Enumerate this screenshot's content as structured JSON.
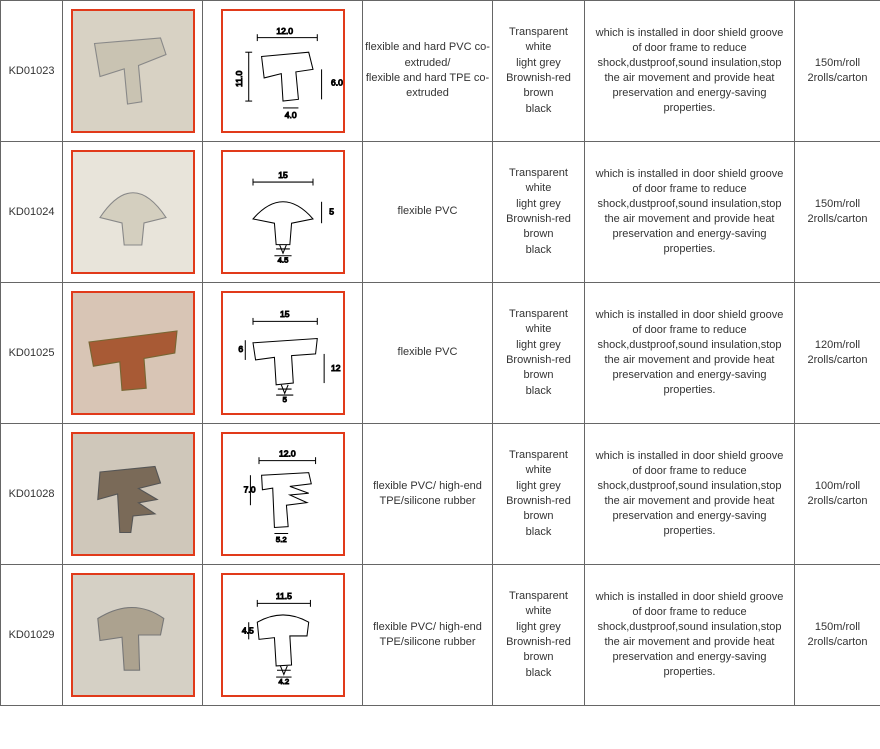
{
  "border_color": "#666666",
  "img_border_color": "#e13a1a",
  "rows": [
    {
      "code": "KD01023",
      "photo_bg": "#d8d2c4",
      "seal_color": "#c9c3b2",
      "drawing_dims": {
        "w": "12.0",
        "h1": "11.0",
        "h2": "6.0",
        "base": "4.0"
      },
      "material": "flexible and hard PVC co-extruded/\nflexible and hard TPE co-extruded",
      "colors": "Transparent\nwhite\nlight grey\nBrownish-red\nbrown\nblack",
      "desc": "which is installed in door shield groove of door frame to reduce shock,dustproof,sound insulation,stop the air movement and provide heat preservation and energy-saving properties.",
      "packaging": "150m/roll\n2rolls/carton"
    },
    {
      "code": "KD01024",
      "photo_bg": "#e8e4da",
      "seal_color": "#d4cfbf",
      "drawing_dims": {
        "w": "15",
        "h1": "5",
        "base": "4.5"
      },
      "material": "flexible PVC",
      "colors": "Transparent\nwhite\nlight grey\nBrownish-red\nbrown\nblack",
      "desc": "which is installed in door shield groove of door frame to reduce shock,dustproof,sound insulation,stop the air movement and provide heat preservation and energy-saving properties.",
      "packaging": "150m/roll\n2rolls/carton"
    },
    {
      "code": "KD01025",
      "photo_bg": "#d8c5b5",
      "seal_color": "#a85a35",
      "drawing_dims": {
        "w": "15",
        "h1": "6",
        "h2": "12",
        "base": "5"
      },
      "material": "flexible PVC",
      "colors": "Transparent\nwhite\nlight grey\nBrownish-red\nbrown\nblack",
      "desc": "which is installed in door shield groove of door frame to reduce shock,dustproof,sound insulation,stop the air movement and provide heat preservation and energy-saving properties.",
      "packaging": "120m/roll\n2rolls/carton"
    },
    {
      "code": "KD01028",
      "photo_bg": "#cfc7ba",
      "seal_color": "#7a6a58",
      "drawing_dims": {
        "w": "12.0",
        "h1": "7.0",
        "base": "5.2"
      },
      "material": "flexible PVC/ high-end TPE/silicone rubber",
      "colors": "Transparent\nwhite\nlight grey\nBrownish-red\nbrown\nblack",
      "desc": "which is installed in door shield groove of door frame to reduce shock,dustproof,sound insulation,stop the air movement and provide heat preservation and energy-saving properties.",
      "packaging": "100m/roll\n2rolls/carton"
    },
    {
      "code": "KD01029",
      "photo_bg": "#d5d0c5",
      "seal_color": "#aca28f",
      "drawing_dims": {
        "w": "11.5",
        "h1": "4.5",
        "base": "4.2"
      },
      "material": "flexible PVC/ high-end TPE/silicone rubber",
      "colors": "Transparent\nwhite\nlight grey\nBrownish-red\nbrown\nblack",
      "desc": "which is installed in door shield groove of door frame to reduce shock,dustproof,sound insulation,stop the air movement and provide heat preservation and energy-saving properties.",
      "packaging": "150m/roll\n2rolls/carton"
    }
  ]
}
